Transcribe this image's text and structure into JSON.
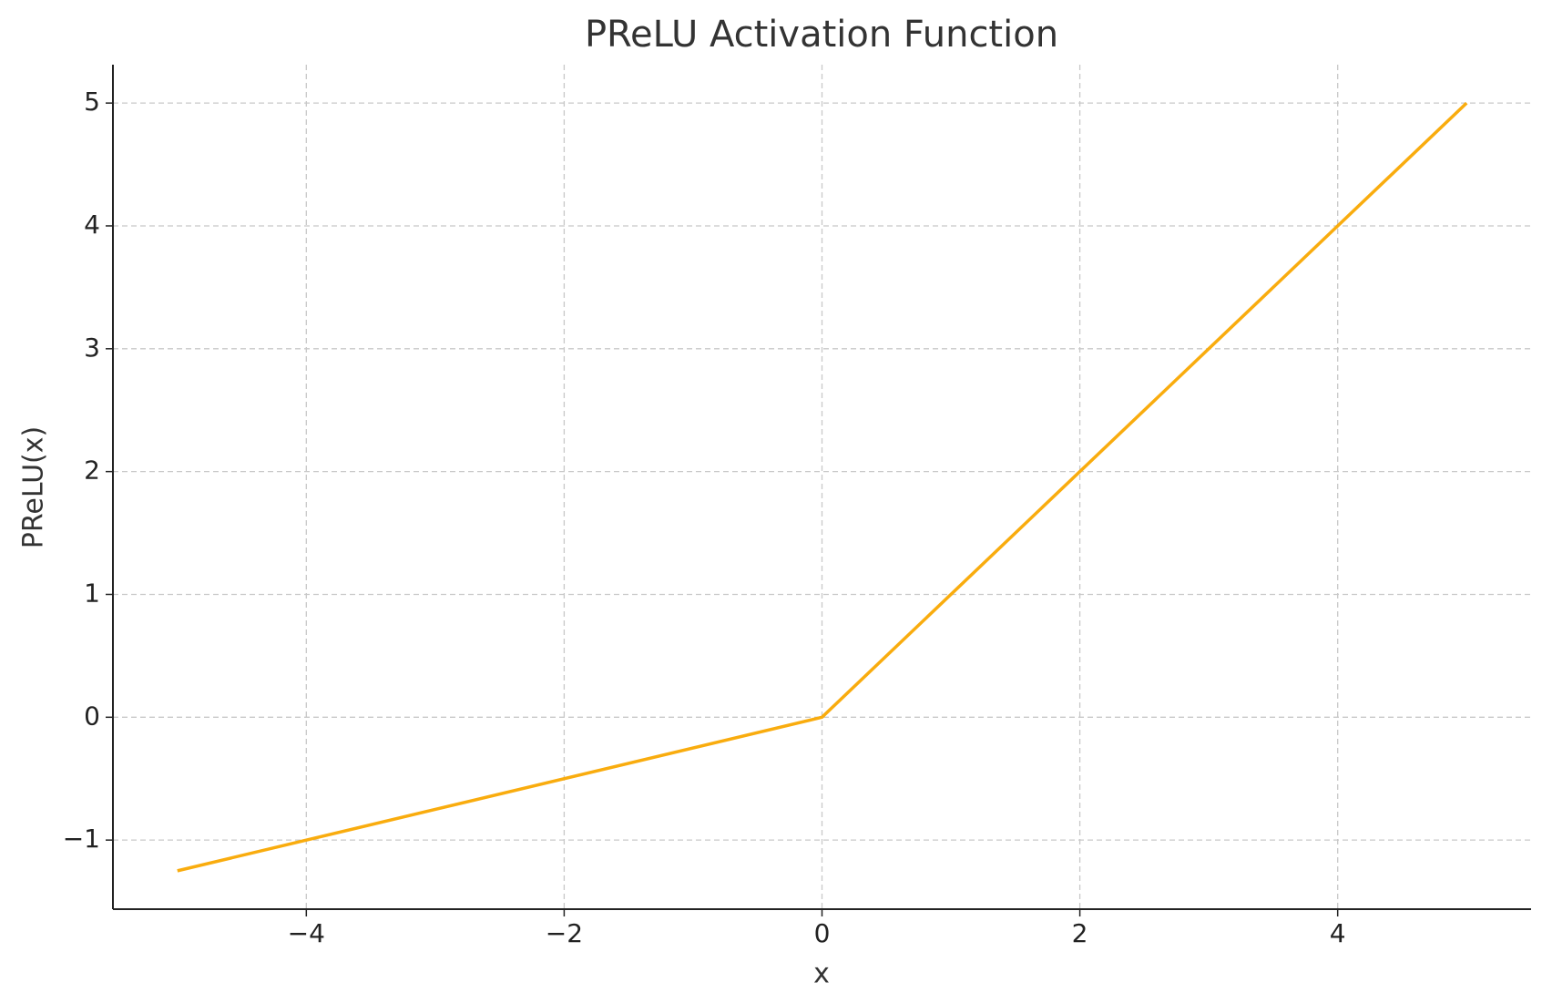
{
  "chart_data": {
    "type": "line",
    "title": "PReLU Activation Function",
    "x_label": "x",
    "y_label": "PReLU(x)",
    "x": [
      -5,
      0,
      5
    ],
    "series": [
      {
        "name": "PReLU",
        "color": "#f9ac0e",
        "values": [
          -1.25,
          0,
          5
        ]
      }
    ],
    "xlim": [
      -5.5,
      5.5
    ],
    "ylim": [
      -1.5625,
      5.3125
    ],
    "xticks": [
      {
        "value": -4,
        "label": "−4"
      },
      {
        "value": -2,
        "label": "−2"
      },
      0,
      2,
      4
    ],
    "yticks": [
      {
        "value": -1,
        "label": "−1"
      },
      0,
      1,
      2,
      3,
      4,
      5
    ],
    "grid": true
  }
}
